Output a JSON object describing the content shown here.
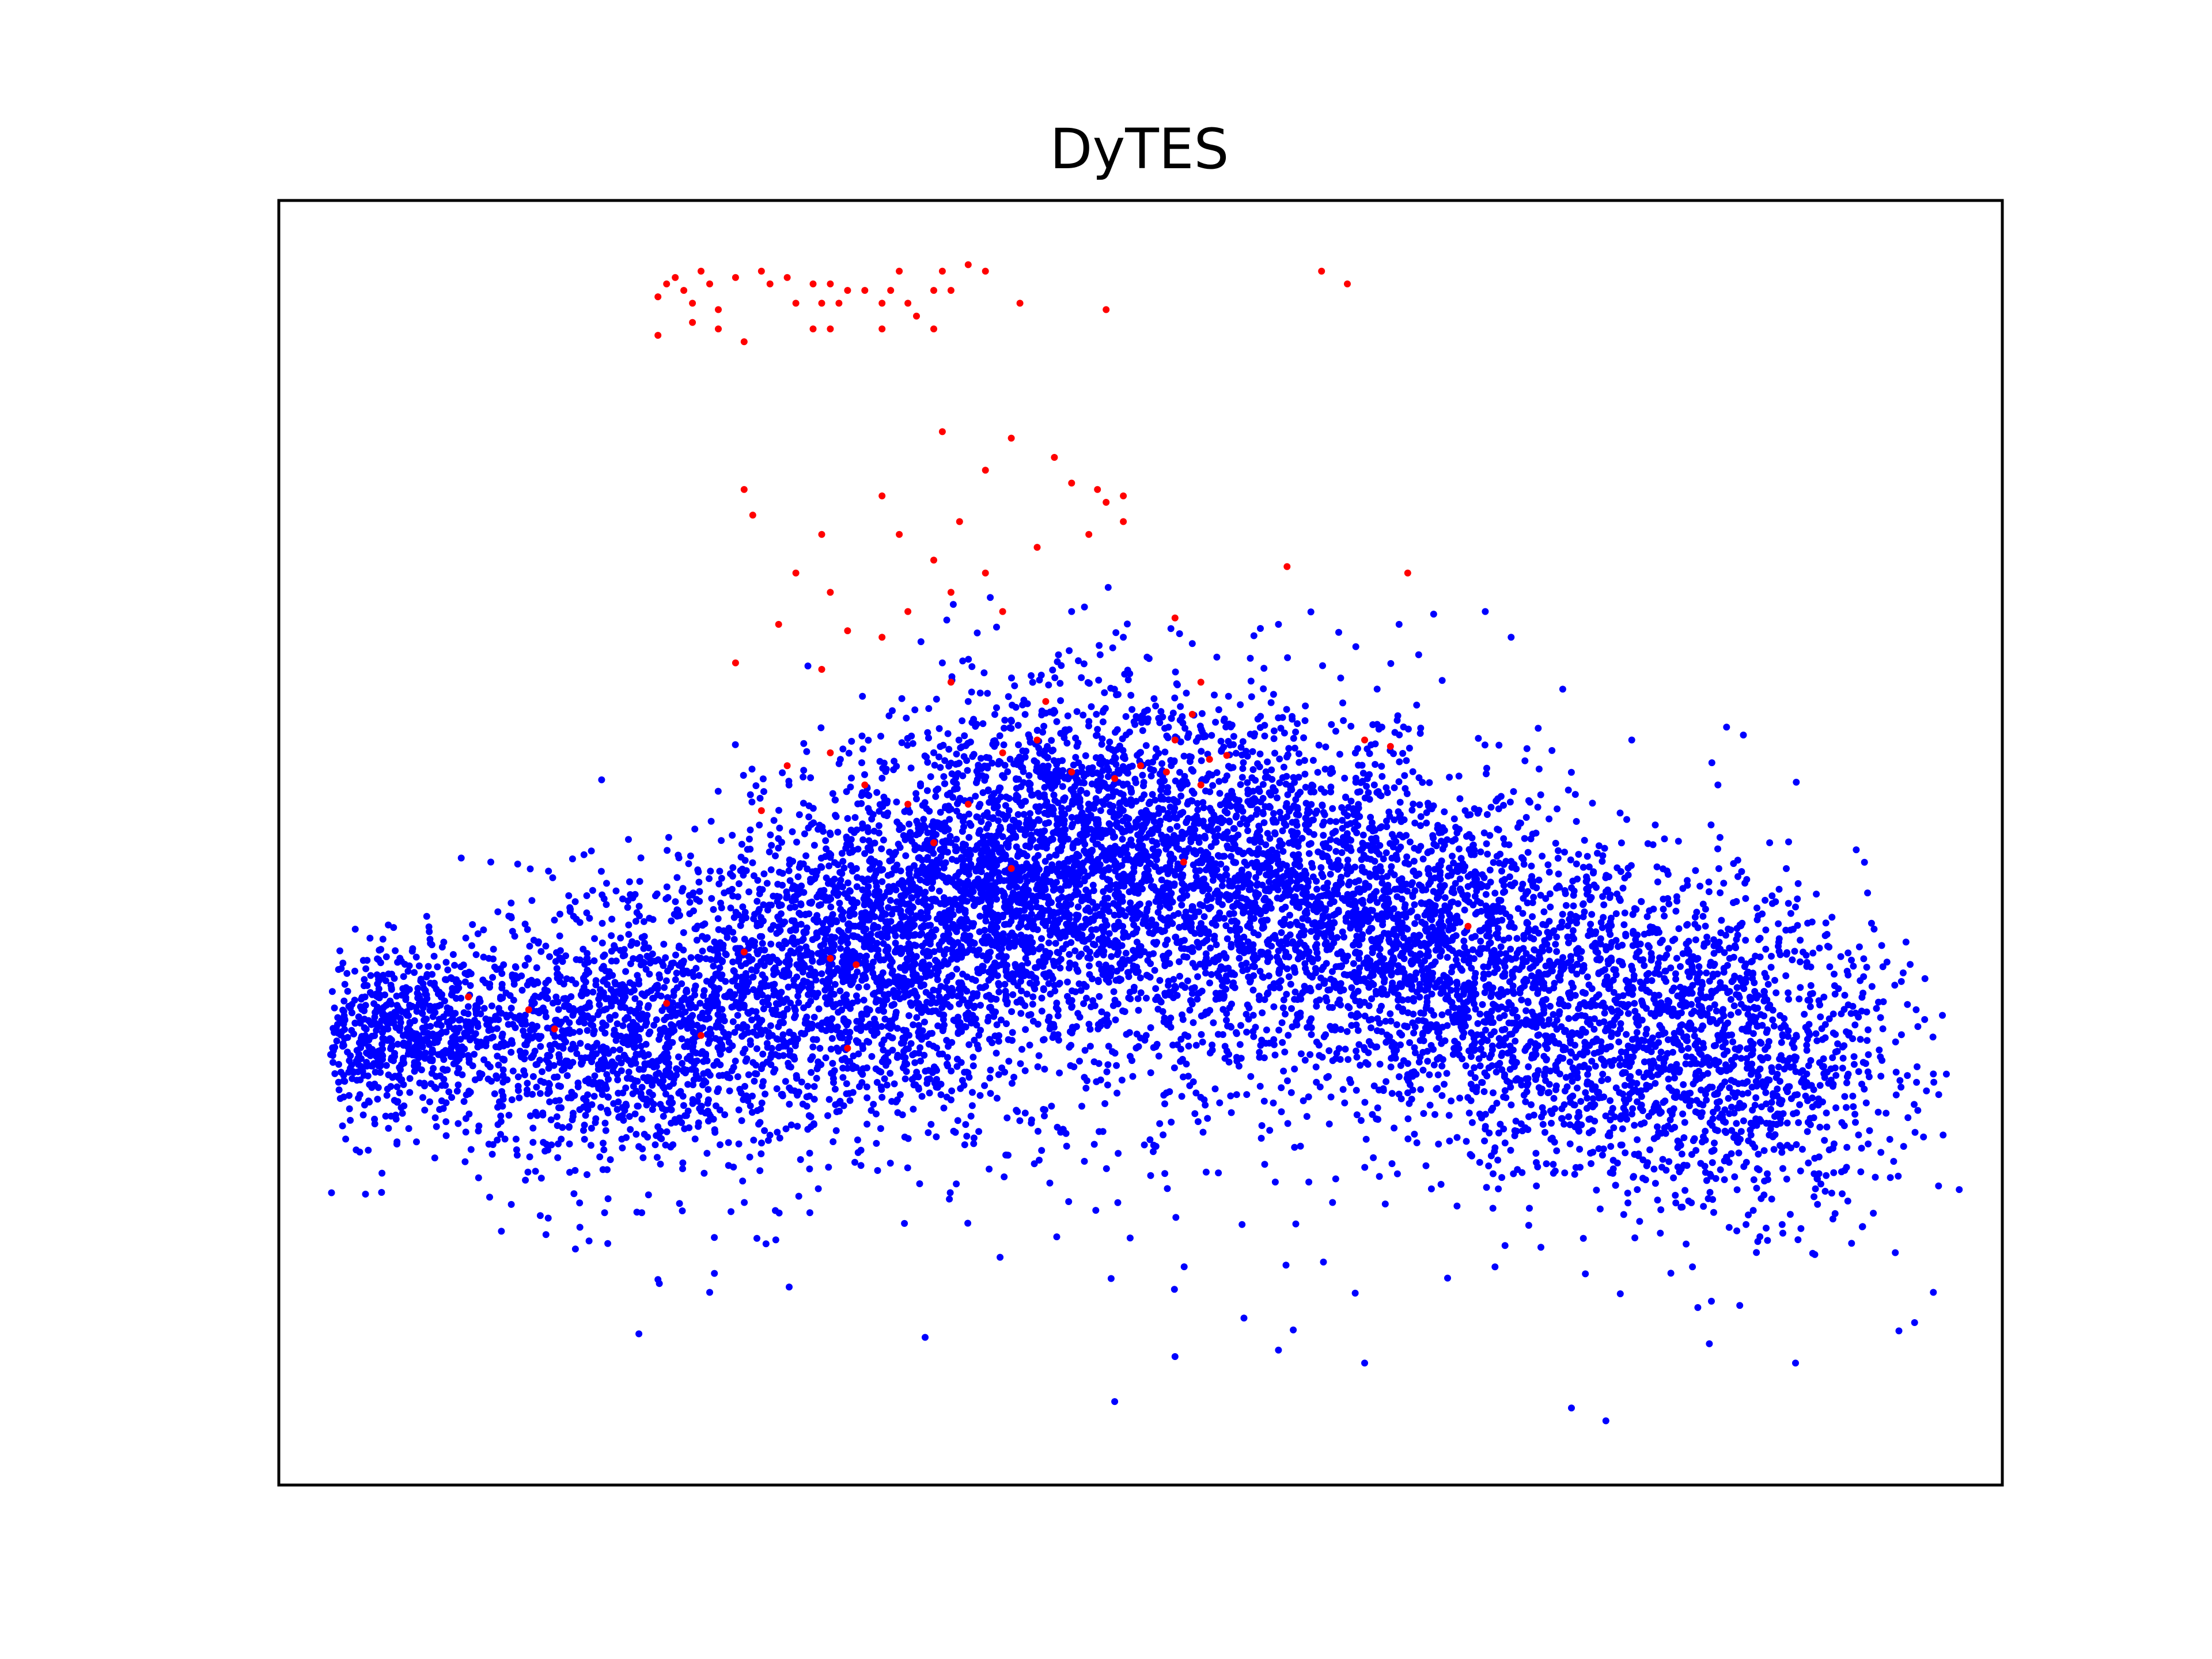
{
  "chart_data": {
    "type": "scatter",
    "title": "DyTES",
    "xlabel": "",
    "ylabel": "",
    "xlim": [
      0,
      100
    ],
    "ylim": [
      0,
      100
    ],
    "ticks_visible": false,
    "grid": false,
    "legend": "none",
    "series": [
      {
        "color": "#0000ff",
        "generator": {
          "seed": 7,
          "count": 11000,
          "clusters": [
            {
              "cx": 7,
              "cy": 35,
              "sx": 3.2,
              "sy": 3.2,
              "w": 0.06
            },
            {
              "cx": 20,
              "cy": 35,
              "sx": 6,
              "sy": 5,
              "w": 0.12
            },
            {
              "cx": 34,
              "cy": 41,
              "sx": 6,
              "sy": 6,
              "w": 0.17
            },
            {
              "cx": 45,
              "cy": 49,
              "sx": 6,
              "sy": 6.5,
              "w": 0.18
            },
            {
              "cx": 56,
              "cy": 47,
              "sx": 7,
              "sy": 7,
              "w": 0.16
            },
            {
              "cx": 67,
              "cy": 42,
              "sx": 6,
              "sy": 6,
              "w": 0.12
            },
            {
              "cx": 77,
              "cy": 35,
              "sx": 6,
              "sy": 6.5,
              "w": 0.1
            },
            {
              "cx": 86,
              "cy": 33,
              "sx": 4.5,
              "sy": 6,
              "w": 0.07
            },
            {
              "cx": 50,
              "cy": 28,
              "sx": 20,
              "sy": 6,
              "w": 0.02
            }
          ]
        },
        "points": [
          [
            4.5,
            33
          ],
          [
            5,
            38
          ],
          [
            7.5,
            40
          ],
          [
            12.3,
            48.5
          ],
          [
            38.5,
            64
          ],
          [
            40,
            61
          ],
          [
            46,
            68
          ],
          [
            49,
            66
          ],
          [
            53,
            65.5
          ],
          [
            58,
            67
          ],
          [
            64,
            59
          ],
          [
            65,
            67
          ],
          [
            70,
            68
          ],
          [
            71.5,
            66
          ],
          [
            78.5,
            58
          ],
          [
            83.5,
            54.5
          ],
          [
            84,
            59
          ],
          [
            86.5,
            50
          ],
          [
            88,
            45
          ],
          [
            91,
            40
          ],
          [
            93,
            42
          ],
          [
            95,
            37
          ],
          [
            96,
            32
          ],
          [
            97.5,
            23
          ],
          [
            96,
            15
          ],
          [
            94,
            12
          ],
          [
            88,
            9.5
          ],
          [
            83,
            11
          ],
          [
            77,
            5
          ],
          [
            75,
            6
          ],
          [
            63,
            9.5
          ],
          [
            58,
            10.5
          ],
          [
            56,
            13
          ],
          [
            52,
            10
          ],
          [
            48.5,
            6.5
          ],
          [
            37.5,
            11.5
          ],
          [
            22,
            16
          ],
          [
            18,
            19
          ],
          [
            15.5,
            19.5
          ],
          [
            25,
            15
          ]
        ]
      },
      {
        "color": "#ff0000",
        "points": [
          [
            22,
            92.5
          ],
          [
            22.5,
            93.5
          ],
          [
            23,
            94
          ],
          [
            23.5,
            93
          ],
          [
            24,
            92
          ],
          [
            24.5,
            94.5
          ],
          [
            25,
            93.5
          ],
          [
            25.5,
            91.5
          ],
          [
            26.5,
            94
          ],
          [
            28,
            94.5
          ],
          [
            28.5,
            93.5
          ],
          [
            29.5,
            94
          ],
          [
            30,
            92
          ],
          [
            31,
            93.5
          ],
          [
            31.5,
            92
          ],
          [
            32,
            93.5
          ],
          [
            32.5,
            92
          ],
          [
            33,
            93
          ],
          [
            34,
            93
          ],
          [
            35,
            92
          ],
          [
            35.5,
            93
          ],
          [
            36,
            94.5
          ],
          [
            36.5,
            92
          ],
          [
            37,
            91
          ],
          [
            38,
            93
          ],
          [
            38.5,
            94.5
          ],
          [
            39,
            93
          ],
          [
            40,
            95
          ],
          [
            41,
            94.5
          ],
          [
            22,
            89.5
          ],
          [
            24,
            90.5
          ],
          [
            25.5,
            90
          ],
          [
            27,
            89
          ],
          [
            31,
            90
          ],
          [
            32,
            90
          ],
          [
            35,
            90
          ],
          [
            38,
            90
          ],
          [
            43,
            92
          ],
          [
            48,
            91.5
          ],
          [
            60.5,
            94.5
          ],
          [
            62,
            93.5
          ],
          [
            38.5,
            82
          ],
          [
            42.5,
            81.5
          ],
          [
            45,
            80
          ],
          [
            41,
            79
          ],
          [
            27,
            77.5
          ],
          [
            27.5,
            75.5
          ],
          [
            35,
            77
          ],
          [
            46,
            78
          ],
          [
            47.5,
            77.5
          ],
          [
            49,
            77
          ],
          [
            49,
            75
          ],
          [
            48,
            76.5
          ],
          [
            47,
            74
          ],
          [
            36,
            74
          ],
          [
            38,
            72
          ],
          [
            39.5,
            75
          ],
          [
            44,
            73
          ],
          [
            31.5,
            74
          ],
          [
            30,
            71
          ],
          [
            32,
            69.5
          ],
          [
            33,
            66.5
          ],
          [
            36.5,
            68
          ],
          [
            39,
            69.5
          ],
          [
            41,
            71
          ],
          [
            35,
            66
          ],
          [
            29,
            67
          ],
          [
            26.5,
            64
          ],
          [
            31.5,
            63.5
          ],
          [
            42,
            68
          ],
          [
            39,
            62.5
          ],
          [
            58.5,
            71.5
          ],
          [
            65.5,
            71
          ],
          [
            52,
            67.5
          ],
          [
            53.5,
            62.5
          ],
          [
            53,
            60
          ],
          [
            52,
            58
          ],
          [
            44.5,
            61
          ],
          [
            44,
            58
          ],
          [
            46,
            55.5
          ],
          [
            42,
            57
          ],
          [
            40,
            53
          ],
          [
            38,
            50
          ],
          [
            32,
            57
          ],
          [
            29.5,
            56
          ],
          [
            28,
            52.5
          ],
          [
            63,
            58
          ],
          [
            64.5,
            57.5
          ],
          [
            48.5,
            55
          ],
          [
            50,
            56
          ],
          [
            51.5,
            55.5
          ],
          [
            53.5,
            54.5
          ],
          [
            54,
            56.5
          ],
          [
            55,
            56.8
          ],
          [
            34,
            54.5
          ],
          [
            36.5,
            53
          ],
          [
            42.5,
            48
          ],
          [
            52.5,
            48.5
          ],
          [
            69,
            43.5
          ],
          [
            27,
            41.5
          ],
          [
            32,
            41
          ],
          [
            33.5,
            40.5
          ],
          [
            11,
            38
          ],
          [
            14.5,
            37
          ],
          [
            16,
            35.5
          ],
          [
            22.5,
            37.5
          ],
          [
            24.5,
            35
          ],
          [
            33,
            34
          ]
        ]
      }
    ]
  }
}
